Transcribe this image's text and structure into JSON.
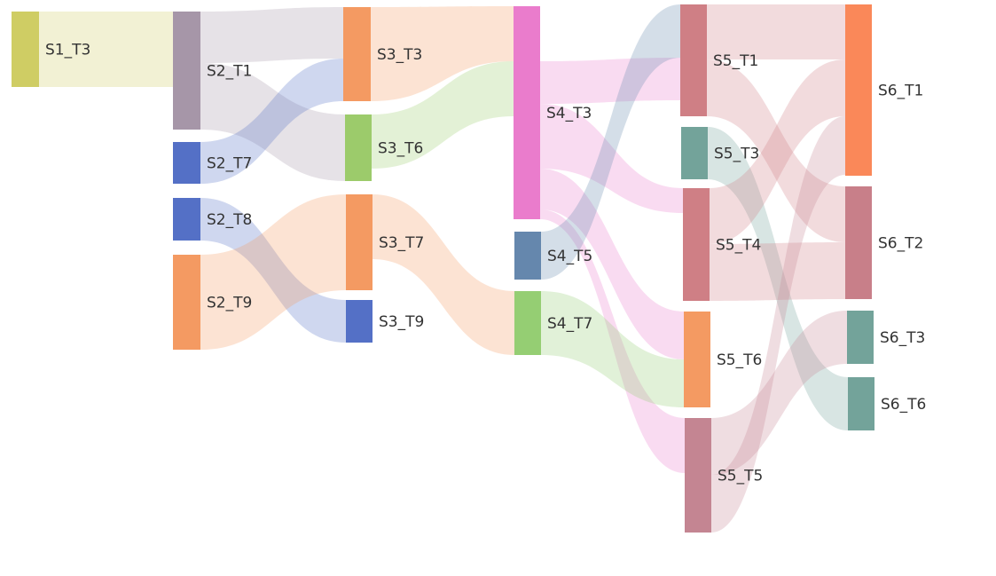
{
  "chart_data": {
    "type": "sankey",
    "title": "",
    "nodes": [
      {
        "id": "S1_T3",
        "label": "S1_T3",
        "color": "#cfcd64"
      },
      {
        "id": "S2_T1",
        "label": "S2_T1",
        "color": "#a696a8"
      },
      {
        "id": "S2_T7",
        "label": "S2_T7",
        "color": "#5470c6"
      },
      {
        "id": "S2_T8",
        "label": "S2_T8",
        "color": "#5470c6"
      },
      {
        "id": "S2_T9",
        "label": "S2_T9",
        "color": "#f49a62"
      },
      {
        "id": "S3_T3",
        "label": "S3_T3",
        "color": "#f49a62"
      },
      {
        "id": "S3_T6",
        "label": "S3_T6",
        "color": "#9ccb6b"
      },
      {
        "id": "S3_T7",
        "label": "S3_T7",
        "color": "#f49a62"
      },
      {
        "id": "S3_T9",
        "label": "S3_T9",
        "color": "#5470c6"
      },
      {
        "id": "S4_T3",
        "label": "S4_T3",
        "color": "#ea7ccc"
      },
      {
        "id": "S4_T5",
        "label": "S4_T5",
        "color": "#6587ad"
      },
      {
        "id": "S4_T7",
        "label": "S4_T7",
        "color": "#95ce73"
      },
      {
        "id": "S5_T1",
        "label": "S5_T1",
        "color": "#cf7f85"
      },
      {
        "id": "S5_T3",
        "label": "S5_T3",
        "color": "#73a39a"
      },
      {
        "id": "S5_T4",
        "label": "S5_T4",
        "color": "#cf7f85"
      },
      {
        "id": "S5_T6",
        "label": "S5_T6",
        "color": "#f49a62"
      },
      {
        "id": "S5_T5",
        "label": "S5_T5",
        "color": "#c48592"
      },
      {
        "id": "S6_T1",
        "label": "S6_T1",
        "color": "#fa8859"
      },
      {
        "id": "S6_T2",
        "label": "S6_T2",
        "color": "#c87f89"
      },
      {
        "id": "S6_T3",
        "label": "S6_T3",
        "color": "#73a39a"
      },
      {
        "id": "S6_T6",
        "label": "S6_T6",
        "color": "#73a39a"
      }
    ],
    "links": [
      {
        "source": "S1_T3",
        "target": "S2_T1",
        "value": 4
      },
      {
        "source": "S2_T1",
        "target": "S3_T3",
        "value": 2
      },
      {
        "source": "S2_T1",
        "target": "S3_T6",
        "value": 3
      },
      {
        "source": "S2_T7",
        "target": "S3_T3",
        "value": 2
      },
      {
        "source": "S2_T8",
        "target": "S3_T9",
        "value": 2
      },
      {
        "source": "S2_T9",
        "target": "S3_T7",
        "value": 5
      },
      {
        "source": "S3_T3",
        "target": "S4_T3",
        "value": 2
      },
      {
        "source": "S3_T6",
        "target": "S4_T3",
        "value": 3
      },
      {
        "source": "S3_T7",
        "target": "S4_T7",
        "value": 3
      },
      {
        "source": "S4_T3",
        "target": "S5_T1",
        "value": 2
      },
      {
        "source": "S4_T3",
        "target": "S5_T4",
        "value": 2
      },
      {
        "source": "S4_T3",
        "target": "S5_T6",
        "value": 2
      },
      {
        "source": "S4_T3",
        "target": "S5_T5",
        "value": 2
      },
      {
        "source": "S4_T5",
        "target": "S5_T1",
        "value": 2
      },
      {
        "source": "S4_T7",
        "target": "S5_T6",
        "value": 2
      },
      {
        "source": "S5_T1",
        "target": "S6_T1",
        "value": 2
      },
      {
        "source": "S5_T1",
        "target": "S6_T2",
        "value": 2
      },
      {
        "source": "S5_T3",
        "target": "S6_T6",
        "value": 2
      },
      {
        "source": "S5_T4",
        "target": "S6_T1",
        "value": 2
      },
      {
        "source": "S5_T4",
        "target": "S6_T2",
        "value": 2
      },
      {
        "source": "S5_T5",
        "target": "S6_T1",
        "value": 2
      },
      {
        "source": "S5_T5",
        "target": "S6_T3",
        "value": 2
      }
    ]
  }
}
